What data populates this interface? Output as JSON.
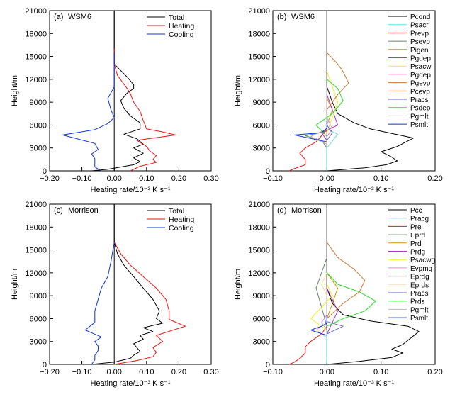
{
  "chart_data": [
    {
      "type": "line",
      "panel": "(a)",
      "scheme": "WSM6",
      "xlabel": "Heating rate/10⁻³ K s⁻¹",
      "ylabel": "Height/m",
      "xlim": [
        -0.2,
        0.3
      ],
      "ylim": [
        0,
        21000
      ],
      "xticks": [
        "−0.20",
        "−0.10",
        "0.00",
        "0.10",
        "0.20",
        "0.30"
      ],
      "yticks": [
        "0",
        "3000",
        "6000",
        "9000",
        "12000",
        "15000",
        "18000",
        "21000"
      ],
      "legend_position": "top-right",
      "series": [
        {
          "name": "Total",
          "color": "#000000",
          "x": [
            -0.07,
            -0.02,
            0.02,
            0.06,
            0.08,
            0.06,
            0.09,
            0.06,
            0.09,
            0.07,
            0.03,
            0.08,
            0.08,
            0.05,
            0.03,
            0.02,
            0.04,
            0.06,
            0.06,
            0.04,
            0.0,
            0.0,
            0.0,
            0.0
          ],
          "y": [
            0,
            200,
            500,
            800,
            1200,
            1700,
            2300,
            3000,
            3500,
            4200,
            4800,
            5500,
            6300,
            7200,
            8200,
            9200,
            10200,
            10800,
            11300,
            12300,
            14000,
            15000,
            16000,
            21000
          ]
        },
        {
          "name": "Heating",
          "color": "#ee1111",
          "x": [
            0.05,
            0.08,
            0.13,
            0.12,
            0.13,
            0.11,
            0.1,
            0.07,
            0.19,
            0.15,
            0.1,
            0.09,
            0.08,
            0.06,
            0.05,
            0.04,
            0.01,
            0.0,
            0.0
          ],
          "y": [
            0,
            600,
            1100,
            1500,
            2000,
            2600,
            3200,
            4000,
            4700,
            5100,
            5500,
            6600,
            7800,
            9000,
            10100,
            10800,
            12500,
            14000,
            16000
          ]
        },
        {
          "name": "Cooling",
          "color": "#1133dd",
          "x": [
            -0.04,
            -0.06,
            -0.06,
            -0.06,
            -0.07,
            -0.05,
            -0.06,
            -0.16,
            -0.06,
            -0.02,
            0.0,
            -0.01,
            -0.02,
            0.0,
            0.0,
            0.0
          ],
          "y": [
            0,
            500,
            1000,
            1600,
            2200,
            2800,
            3600,
            4700,
            5400,
            6200,
            7000,
            8000,
            9500,
            11000,
            13000,
            15500
          ]
        }
      ]
    },
    {
      "type": "line",
      "panel": "(b)",
      "scheme": "WSM6",
      "xlabel": "Heating rate/10⁻³ K s⁻¹",
      "ylabel": "Height/m",
      "xlim": [
        -0.1,
        0.2
      ],
      "ylim": [
        0,
        21000
      ],
      "xticks": [
        "−0.10",
        "0.00",
        "0.10",
        "0.20"
      ],
      "yticks": [
        "0",
        "3000",
        "6000",
        "9000",
        "12000",
        "15000",
        "18000",
        "21000"
      ],
      "legend_position": "top-right",
      "series": [
        {
          "name": "Pcond",
          "color": "#000000",
          "x": [
            0.0,
            0.07,
            0.11,
            0.13,
            0.12,
            0.1,
            0.13,
            0.16,
            0.08,
            0.05,
            0.02,
            0.01,
            0.0,
            0.0,
            0.0,
            0.0
          ],
          "y": [
            0,
            400,
            800,
            1300,
            1800,
            2500,
            3200,
            4300,
            5500,
            6300,
            7500,
            9000,
            11000,
            14000,
            16000,
            21000
          ]
        },
        {
          "name": "Psacr",
          "color": "#66dddd",
          "x": [
            0,
            0,
            0.02,
            0.0,
            0
          ],
          "y": [
            0,
            3000,
            4800,
            5500,
            7000
          ]
        },
        {
          "name": "Prevp",
          "color": "#ee1111",
          "x": [
            -0.07,
            -0.06,
            -0.04,
            -0.04,
            -0.05,
            -0.04,
            -0.02,
            -0.01,
            0.0
          ],
          "y": [
            0,
            300,
            800,
            1500,
            2300,
            3000,
            3800,
            4600,
            5500
          ]
        },
        {
          "name": "Psevp",
          "color": "#668866",
          "x": [
            0,
            -0.01,
            -0.04,
            0.0,
            0
          ],
          "y": [
            3000,
            4000,
            4600,
            5200,
            6000
          ]
        },
        {
          "name": "Pigen",
          "color": "#cc9900",
          "x": [
            0,
            0.0,
            0.01,
            0
          ],
          "y": [
            5000,
            6000,
            8000,
            9500
          ]
        },
        {
          "name": "Pgdep",
          "color": "#aa33cc",
          "x": [
            0,
            -0.01,
            0.02,
            0.01,
            0
          ],
          "y": [
            4000,
            5000,
            6000,
            8000,
            10000
          ]
        },
        {
          "name": "Psacw",
          "color": "#eeee22",
          "x": [
            0,
            0.01,
            0.02,
            0.01,
            0
          ],
          "y": [
            5000,
            7000,
            9000,
            11000,
            13000
          ]
        },
        {
          "name": "Pgdep",
          "color": "#ee88cc",
          "x": [
            0,
            0.01,
            0.0
          ],
          "y": [
            4500,
            5500,
            7000
          ]
        },
        {
          "name": "Pgevp",
          "color": "#cc7733",
          "x": [
            0,
            0.02,
            0.04,
            0.03,
            0.02,
            0.0
          ],
          "y": [
            8000,
            10000,
            11500,
            13000,
            14000,
            15500
          ]
        },
        {
          "name": "Pcevp",
          "color": "#ff9966",
          "x": [
            0,
            -0.03,
            0.0
          ],
          "y": [
            3500,
            4500,
            5500
          ]
        },
        {
          "name": "Pracs",
          "color": "#6666cc",
          "x": [
            0,
            0.01,
            0.0
          ],
          "y": [
            4000,
            5000,
            6000
          ]
        },
        {
          "name": "Psdep",
          "color": "#22dd22",
          "x": [
            0,
            -0.02,
            0.01,
            0.03,
            0.02,
            0.0
          ],
          "y": [
            4500,
            6000,
            7500,
            9200,
            10800,
            12000
          ]
        },
        {
          "name": "Pgmlt",
          "color": "#bbbbbb",
          "x": [
            0,
            -0.03,
            0.0
          ],
          "y": [
            3500,
            4500,
            5500
          ]
        },
        {
          "name": "Psmlt",
          "color": "#1133dd",
          "x": [
            0,
            -0.06,
            -0.01,
            0.0,
            0
          ],
          "y": [
            3800,
            4700,
            5000,
            5600,
            6500
          ]
        }
      ]
    },
    {
      "type": "line",
      "panel": "(c)",
      "scheme": "Morrison",
      "xlabel": "Heating rate/10⁻³ K s⁻¹",
      "ylabel": "Height/m",
      "xlim": [
        -0.2,
        0.3
      ],
      "ylim": [
        0,
        21000
      ],
      "xticks": [
        "−0.20",
        "−0.10",
        "0.00",
        "0.10",
        "0.20",
        "0.30"
      ],
      "yticks": [
        "0",
        "3000",
        "6000",
        "9000",
        "12000",
        "15000",
        "18000",
        "21000"
      ],
      "legend_position": "top-right",
      "series": [
        {
          "name": "Total",
          "color": "#000000",
          "x": [
            -0.07,
            0.0,
            0.05,
            0.06,
            0.08,
            0.07,
            0.06,
            0.09,
            0.08,
            0.12,
            0.09,
            0.15,
            0.13,
            0.14,
            0.12,
            0.09,
            0.06,
            0.03,
            0.01,
            0.0,
            0.0
          ],
          "y": [
            0,
            300,
            800,
            1200,
            1700,
            2200,
            2700,
            3300,
            3800,
            4300,
            4800,
            5400,
            6000,
            7000,
            8500,
            10000,
            11500,
            13000,
            14500,
            16000,
            21000
          ]
        },
        {
          "name": "Heating",
          "color": "#ee1111",
          "x": [
            0.0,
            0.07,
            0.12,
            0.13,
            0.12,
            0.15,
            0.13,
            0.22,
            0.17,
            0.17,
            0.16,
            0.13,
            0.09,
            0.05,
            0.02,
            0.0
          ],
          "y": [
            0,
            500,
            1000,
            1600,
            2200,
            3000,
            3800,
            5000,
            5900,
            7000,
            8500,
            10000,
            11500,
            13000,
            14500,
            16000
          ]
        },
        {
          "name": "Cooling",
          "color": "#1133dd",
          "x": [
            -0.07,
            -0.06,
            -0.06,
            -0.05,
            -0.05,
            -0.06,
            -0.04,
            -0.09,
            -0.06,
            -0.06,
            -0.05,
            -0.04,
            -0.02,
            -0.01,
            0.0
          ],
          "y": [
            0,
            600,
            1200,
            1800,
            2400,
            3000,
            3600,
            4500,
            5500,
            7000,
            8500,
            10000,
            11500,
            13500,
            16000
          ]
        }
      ]
    },
    {
      "type": "line",
      "panel": "(d)",
      "scheme": "Morrison",
      "xlabel": "Heating rate/10⁻³ K s⁻¹",
      "ylabel": "Height/m",
      "xlim": [
        -0.1,
        0.2
      ],
      "ylim": [
        0,
        21000
      ],
      "xticks": [
        "−0.10",
        "0.00",
        "0.10",
        "0.20"
      ],
      "yticks": [
        "0",
        "3000",
        "6000",
        "9000",
        "12000",
        "15000",
        "18000",
        "21000"
      ],
      "legend_position": "top-right",
      "series": [
        {
          "name": "Pcc",
          "color": "#000000",
          "x": [
            0.0,
            0.06,
            0.12,
            0.14,
            0.12,
            0.14,
            0.17,
            0.15,
            0.08,
            0.03,
            0.01,
            0.0,
            0.0,
            0.0
          ],
          "y": [
            0,
            400,
            900,
            1500,
            2000,
            2600,
            4300,
            5000,
            5700,
            6500,
            8000,
            10000,
            14000,
            21000
          ]
        },
        {
          "name": "Pracg",
          "color": "#66dddd",
          "x": [
            0,
            0,
            0.0,
            0
          ],
          "y": [
            0,
            3000,
            4500,
            6000
          ]
        },
        {
          "name": "Pre",
          "color": "#ee1111",
          "x": [
            -0.07,
            -0.06,
            -0.05,
            -0.04,
            -0.04,
            -0.03,
            -0.01,
            0.0
          ],
          "y": [
            0,
            300,
            800,
            1500,
            2300,
            3000,
            4000,
            5000
          ]
        },
        {
          "name": "Eprd",
          "color": "#668866",
          "x": [
            0,
            -0.01,
            -0.02,
            -0.01,
            0.0
          ],
          "y": [
            5000,
            7500,
            10000,
            12000,
            14000
          ]
        },
        {
          "name": "Prd",
          "color": "#cc9900",
          "x": [
            0,
            0.01,
            0.02,
            0.0
          ],
          "y": [
            6000,
            8000,
            10000,
            12000
          ]
        },
        {
          "name": "Prdg",
          "color": "#aa33cc",
          "x": [
            0,
            0.01,
            0.02,
            0.01,
            0
          ],
          "y": [
            4000,
            5500,
            7000,
            8500,
            10000
          ]
        },
        {
          "name": "Psacwg",
          "color": "#eeee22",
          "x": [
            0,
            -0.03,
            -0.01,
            0.01,
            0
          ],
          "y": [
            4500,
            6000,
            7500,
            9000,
            10500
          ]
        },
        {
          "name": "Evpmg",
          "color": "#ee88cc",
          "x": [
            0,
            -0.01,
            0.0
          ],
          "y": [
            4500,
            5500,
            6500
          ]
        },
        {
          "name": "Eprdg",
          "color": "#cc7733",
          "x": [
            0,
            0.03,
            0.06,
            0.07,
            0.05,
            0.02,
            0.0
          ],
          "y": [
            6000,
            8000,
            9500,
            11000,
            12500,
            14000,
            16000
          ]
        },
        {
          "name": "Eprds",
          "color": "#ffdd88",
          "x": [
            0,
            -0.01,
            0.0
          ],
          "y": [
            9000,
            10500,
            12000
          ]
        },
        {
          "name": "Pracs",
          "color": "#6666cc",
          "x": [
            0,
            0.03,
            0.0
          ],
          "y": [
            4000,
            5000,
            5600
          ]
        },
        {
          "name": "Prds",
          "color": "#22dd22",
          "x": [
            0,
            0.03,
            0.07,
            0.09,
            0.06,
            0.02,
            0.0
          ],
          "y": [
            5000,
            6000,
            7000,
            8300,
            9500,
            10500,
            12000
          ]
        },
        {
          "name": "Pgmlt",
          "color": "#bbbbbb",
          "x": [
            0,
            -0.02,
            0.0
          ],
          "y": [
            3500,
            4500,
            5500
          ]
        },
        {
          "name": "Psmlt",
          "color": "#1133dd",
          "x": [
            0,
            -0.03,
            -0.01,
            0.0,
            0
          ],
          "y": [
            3800,
            4500,
            5000,
            5400,
            6500
          ]
        }
      ]
    }
  ]
}
